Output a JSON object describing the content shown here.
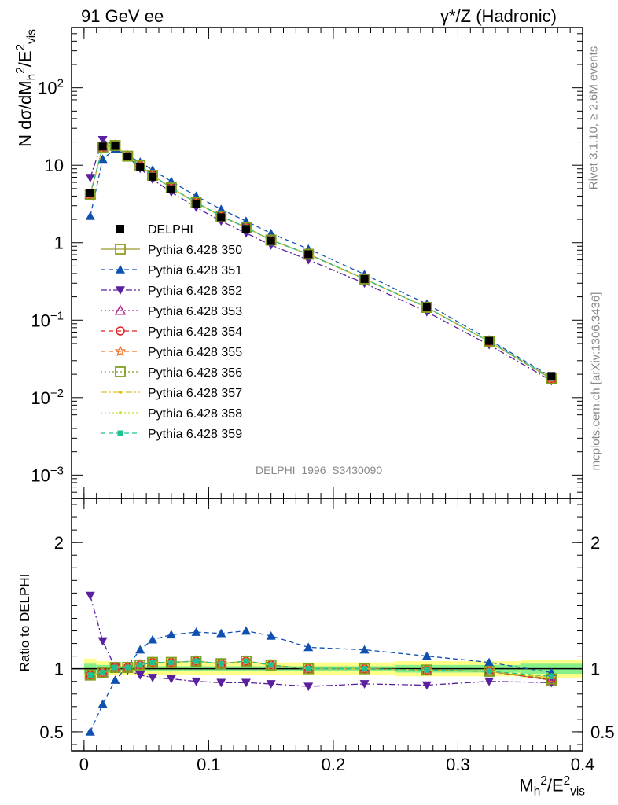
{
  "titles": {
    "left": "91 GeV ee",
    "right": "γ*/Z (Hadronic)",
    "analysis": "DELPHI_1996_S3430090",
    "side_top": "Rivet 3.1.10, ≥ 2.6M events",
    "side_bottom": "mcplots.cern.ch [arXiv:1306.3436]",
    "ylabel_main": "N dσ/dM²h/E²vis",
    "ylabel_ratio": "Ratio to DELPHI",
    "xlabel": "M²h/E²vis"
  },
  "chart_data": [
    {
      "type": "line",
      "panel": "main",
      "yscale": "log",
      "ylim": [
        0.0005,
        600
      ],
      "xlim": [
        -0.01,
        0.4
      ],
      "y_ticks": [
        {
          "value": 0.001,
          "label": "10⁻³"
        },
        {
          "value": 0.01,
          "label": "10⁻²"
        },
        {
          "value": 0.1,
          "label": "10⁻¹"
        },
        {
          "value": 1,
          "label": "1"
        },
        {
          "value": 10,
          "label": "10"
        },
        {
          "value": 100,
          "label": "10²"
        }
      ],
      "x": [
        0.005,
        0.015,
        0.025,
        0.035,
        0.045,
        0.055,
        0.07,
        0.09,
        0.11,
        0.13,
        0.15,
        0.18,
        0.225,
        0.275,
        0.325,
        0.375
      ],
      "reference": {
        "name": "DELPHI",
        "values": [
          4.4,
          17.5,
          17.8,
          13.0,
          9.6,
          7.1,
          4.9,
          3.15,
          2.13,
          1.5,
          1.05,
          0.71,
          0.34,
          0.148,
          0.054,
          0.019
        ]
      },
      "series": [
        {
          "name": "Pythia 6.428 350",
          "color": "#9a9a2a",
          "marker": "square-open",
          "dash": "solid",
          "values": [
            4.2,
            17.0,
            18.0,
            13.1,
            9.9,
            7.4,
            5.1,
            3.3,
            2.2,
            1.57,
            1.08,
            0.71,
            0.34,
            0.146,
            0.053,
            0.0175
          ]
        },
        {
          "name": "Pythia 6.428 351",
          "color": "#1050b0",
          "marker": "triangle-up",
          "dash": "dashed",
          "values": [
            2.2,
            12.0,
            16.3,
            13.2,
            11.0,
            8.7,
            6.2,
            4.0,
            2.7,
            1.9,
            1.32,
            0.83,
            0.39,
            0.162,
            0.056,
            0.0185
          ]
        },
        {
          "name": "Pythia 6.428 352",
          "color": "#5a20a0",
          "marker": "triangle-down",
          "dash": "dashdot",
          "values": [
            6.9,
            21.3,
            17.9,
            12.9,
            9.1,
            6.6,
            4.5,
            2.85,
            1.9,
            1.33,
            0.93,
            0.6,
            0.3,
            0.128,
            0.048,
            0.0165
          ]
        },
        {
          "name": "Pythia 6.428 353",
          "color": "#b02890",
          "marker": "triangle-open",
          "dash": "dotted",
          "values": [
            4.2,
            17.0,
            18.0,
            13.1,
            9.9,
            7.4,
            5.1,
            3.3,
            2.2,
            1.57,
            1.08,
            0.71,
            0.34,
            0.146,
            0.053,
            0.0175
          ]
        },
        {
          "name": "Pythia 6.428 354",
          "color": "#e02020",
          "marker": "circle-open",
          "dash": "dashed",
          "values": [
            4.2,
            17.0,
            18.0,
            13.1,
            9.9,
            7.4,
            5.1,
            3.3,
            2.2,
            1.57,
            1.08,
            0.71,
            0.34,
            0.146,
            0.053,
            0.0173
          ]
        },
        {
          "name": "Pythia 6.428 355",
          "color": "#f07020",
          "marker": "star-open",
          "dash": "dashed",
          "values": [
            4.2,
            17.0,
            18.0,
            13.1,
            9.9,
            7.4,
            5.1,
            3.3,
            2.2,
            1.57,
            1.08,
            0.71,
            0.34,
            0.146,
            0.053,
            0.0174
          ]
        },
        {
          "name": "Pythia 6.428 356",
          "color": "#80a020",
          "marker": "square-open",
          "dash": "dotted",
          "values": [
            4.2,
            17.0,
            18.0,
            13.1,
            9.9,
            7.4,
            5.1,
            3.3,
            2.2,
            1.57,
            1.08,
            0.71,
            0.34,
            0.146,
            0.053,
            0.0175
          ]
        },
        {
          "name": "Pythia 6.428 357",
          "color": "#e0c020",
          "marker": "dot",
          "dash": "dashdot",
          "values": [
            4.2,
            17.0,
            18.0,
            13.1,
            9.9,
            7.4,
            5.1,
            3.3,
            2.2,
            1.57,
            1.08,
            0.71,
            0.34,
            0.146,
            0.053,
            0.0176
          ]
        },
        {
          "name": "Pythia 6.428 358",
          "color": "#d0e030",
          "marker": "dot",
          "dash": "dotted",
          "values": [
            4.2,
            17.0,
            18.0,
            13.1,
            9.9,
            7.4,
            5.1,
            3.3,
            2.2,
            1.57,
            1.08,
            0.71,
            0.34,
            0.146,
            0.053,
            0.0177
          ]
        },
        {
          "name": "Pythia 6.428 359",
          "color": "#20c090",
          "marker": "square-filled",
          "dash": "dashed",
          "values": [
            4.2,
            17.0,
            18.0,
            13.1,
            9.9,
            7.4,
            5.1,
            3.3,
            2.2,
            1.57,
            1.08,
            0.71,
            0.34,
            0.146,
            0.053,
            0.0178
          ]
        }
      ],
      "legend_position": "left"
    },
    {
      "type": "line",
      "panel": "ratio",
      "ylim": [
        0.35,
        2.35
      ],
      "xlim": [
        -0.01,
        0.4
      ],
      "y_ticks": [
        {
          "value": 0.5,
          "label": "0.5"
        },
        {
          "value": 1,
          "label": "1"
        },
        {
          "value": 2,
          "label": "2"
        }
      ],
      "x_ticks": [
        {
          "value": 0,
          "label": "0"
        },
        {
          "value": 0.1,
          "label": "0.1"
        },
        {
          "value": 0.2,
          "label": "0.2"
        },
        {
          "value": 0.3,
          "label": "0.3"
        },
        {
          "value": 0.4,
          "label": "0.4"
        }
      ],
      "x": [
        0.005,
        0.015,
        0.025,
        0.035,
        0.045,
        0.055,
        0.07,
        0.09,
        0.11,
        0.13,
        0.15,
        0.18,
        0.225,
        0.275,
        0.325,
        0.375
      ],
      "bins": [
        [
          0,
          0.01
        ],
        [
          0.01,
          0.02
        ],
        [
          0.02,
          0.03
        ],
        [
          0.03,
          0.04
        ],
        [
          0.04,
          0.05
        ],
        [
          0.05,
          0.06
        ],
        [
          0.06,
          0.08
        ],
        [
          0.08,
          0.1
        ],
        [
          0.1,
          0.12
        ],
        [
          0.12,
          0.14
        ],
        [
          0.14,
          0.16
        ],
        [
          0.16,
          0.2
        ],
        [
          0.2,
          0.25
        ],
        [
          0.25,
          0.3
        ],
        [
          0.3,
          0.35
        ],
        [
          0.35,
          0.4
        ]
      ],
      "band_yellow": [
        0.08,
        0.06,
        0.05,
        0.05,
        0.05,
        0.05,
        0.05,
        0.05,
        0.05,
        0.05,
        0.05,
        0.05,
        0.05,
        0.06,
        0.06,
        0.07
      ],
      "band_green": [
        0.04,
        0.03,
        0.02,
        0.02,
        0.02,
        0.02,
        0.02,
        0.02,
        0.02,
        0.02,
        0.02,
        0.02,
        0.02,
        0.03,
        0.03,
        0.04
      ],
      "series": [
        {
          "name": "Pythia 6.428 350",
          "values": [
            0.95,
            0.97,
            1.01,
            1.01,
            1.03,
            1.05,
            1.05,
            1.06,
            1.04,
            1.06,
            1.03,
            1.0,
            1.0,
            0.99,
            0.98,
            0.91
          ]
        },
        {
          "name": "Pythia 6.428 351",
          "values": [
            0.5,
            0.72,
            0.91,
            1.02,
            1.15,
            1.23,
            1.27,
            1.29,
            1.28,
            1.3,
            1.26,
            1.17,
            1.15,
            1.1,
            1.05,
            0.97
          ]
        },
        {
          "name": "Pythia 6.428 352",
          "values": [
            1.58,
            1.22,
            1.01,
            0.99,
            0.95,
            0.93,
            0.92,
            0.9,
            0.89,
            0.89,
            0.88,
            0.86,
            0.88,
            0.87,
            0.9,
            0.89
          ]
        },
        {
          "name": "Pythia 6.428 353",
          "values": [
            0.95,
            0.97,
            1.01,
            1.01,
            1.03,
            1.05,
            1.05,
            1.06,
            1.04,
            1.06,
            1.03,
            1.0,
            1.0,
            0.99,
            0.98,
            0.91
          ]
        },
        {
          "name": "Pythia 6.428 354",
          "values": [
            0.95,
            0.97,
            1.01,
            1.01,
            1.03,
            1.05,
            1.05,
            1.06,
            1.04,
            1.06,
            1.03,
            1.0,
            1.0,
            0.99,
            0.98,
            0.91
          ]
        },
        {
          "name": "Pythia 6.428 355",
          "values": [
            0.95,
            0.97,
            1.01,
            1.01,
            1.03,
            1.05,
            1.05,
            1.06,
            1.04,
            1.06,
            1.03,
            1.0,
            1.0,
            0.99,
            0.98,
            0.92
          ]
        },
        {
          "name": "Pythia 6.428 356",
          "values": [
            0.95,
            0.97,
            1.01,
            1.01,
            1.03,
            1.05,
            1.05,
            1.06,
            1.04,
            1.06,
            1.03,
            1.0,
            1.0,
            0.99,
            0.98,
            0.92
          ]
        },
        {
          "name": "Pythia 6.428 357",
          "values": [
            0.95,
            0.97,
            1.01,
            1.01,
            1.03,
            1.05,
            1.05,
            1.06,
            1.04,
            1.06,
            1.03,
            1.0,
            1.0,
            0.99,
            0.98,
            0.93
          ]
        },
        {
          "name": "Pythia 6.428 358",
          "values": [
            0.95,
            0.97,
            1.01,
            1.01,
            1.03,
            1.05,
            1.05,
            1.06,
            1.04,
            1.06,
            1.03,
            1.0,
            1.0,
            0.99,
            0.98,
            0.93
          ]
        },
        {
          "name": "Pythia 6.428 359",
          "values": [
            0.95,
            0.97,
            1.01,
            1.01,
            1.03,
            1.05,
            1.05,
            1.06,
            1.04,
            1.06,
            1.03,
            1.0,
            1.0,
            0.99,
            0.98,
            0.94
          ]
        }
      ]
    }
  ]
}
